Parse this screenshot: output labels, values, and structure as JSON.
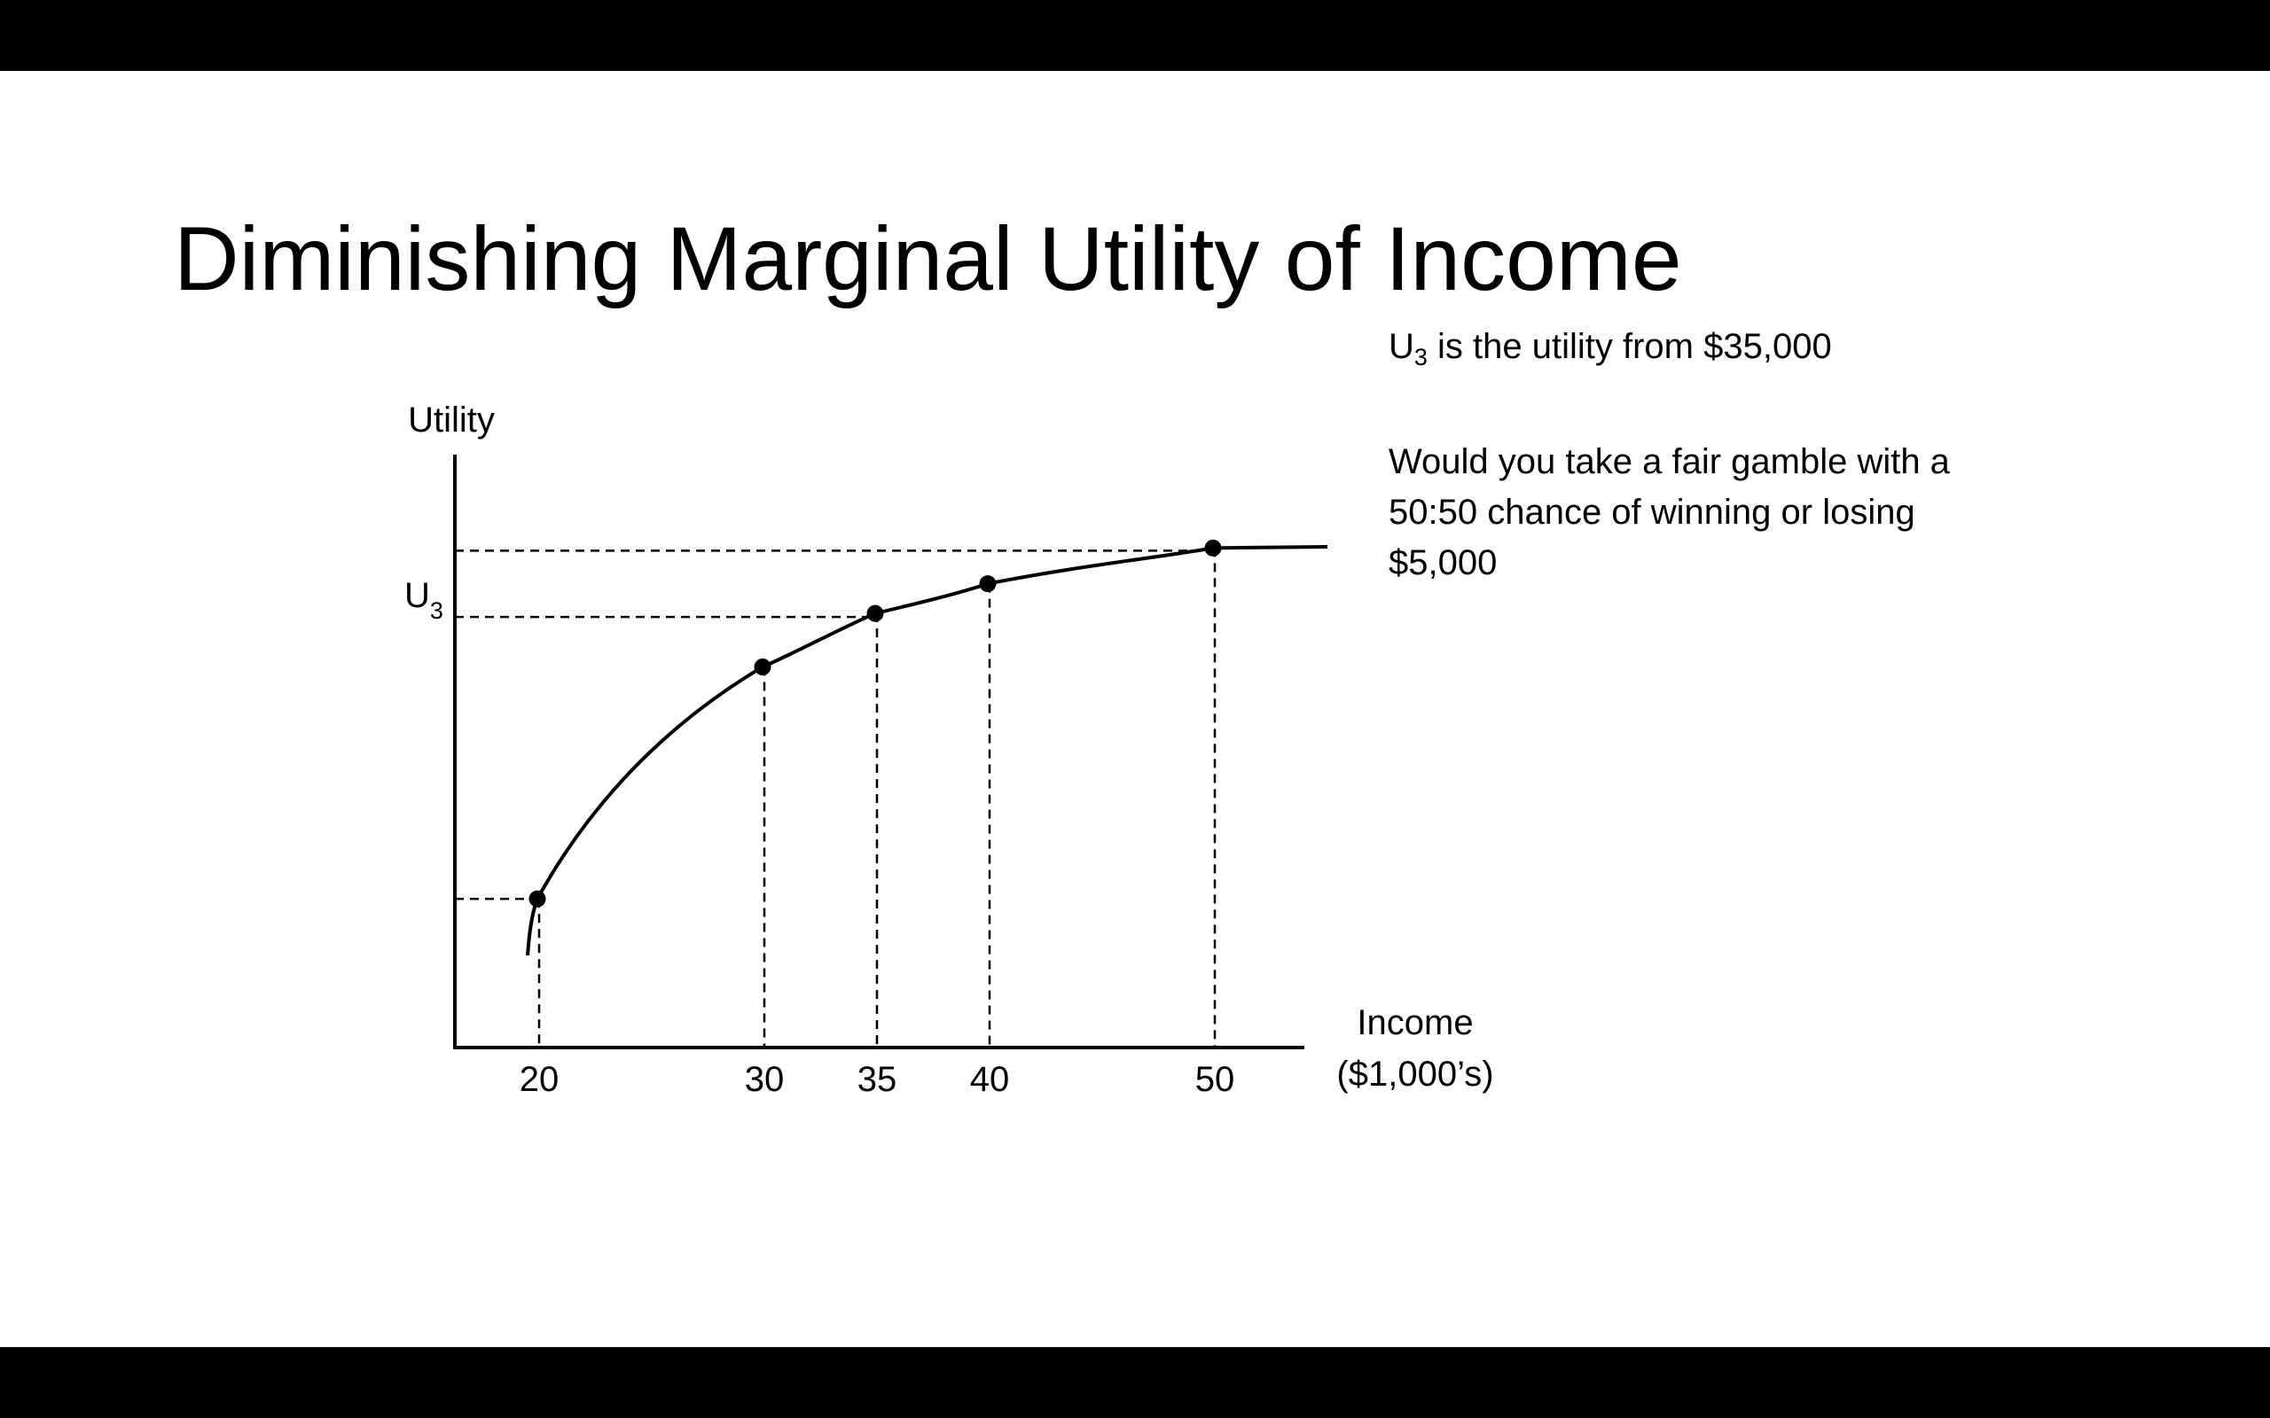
{
  "slide": {
    "title": "Diminishing Marginal Utility of Income",
    "notes": {
      "line1_main": "U",
      "line1_sub": "3",
      "line1_rest": " is the utility from $35,000",
      "question": "Would you take a fair gamble with a 50:50 chance of winning or losing $5,000"
    }
  },
  "chart_data": {
    "type": "line",
    "title": "",
    "ylabel": "Utility",
    "xlabel_line1": "Income",
    "xlabel_line2": "($1,000’s)",
    "x_ticks": [
      "20",
      "30",
      "35",
      "40",
      "50"
    ],
    "y_marker_label": "U",
    "y_marker_sub": "3",
    "curve": "concave utility function of income",
    "points": [
      {
        "x": 20,
        "y": 0.25
      },
      {
        "x": 30,
        "y": 0.64
      },
      {
        "x": 35,
        "y": 0.73
      },
      {
        "x": 40,
        "y": 0.78
      },
      {
        "x": 50,
        "y": 0.84
      }
    ],
    "dashed_guides": true,
    "grid": false,
    "colors": {
      "line": "#000000",
      "background": "#ffffff"
    }
  }
}
